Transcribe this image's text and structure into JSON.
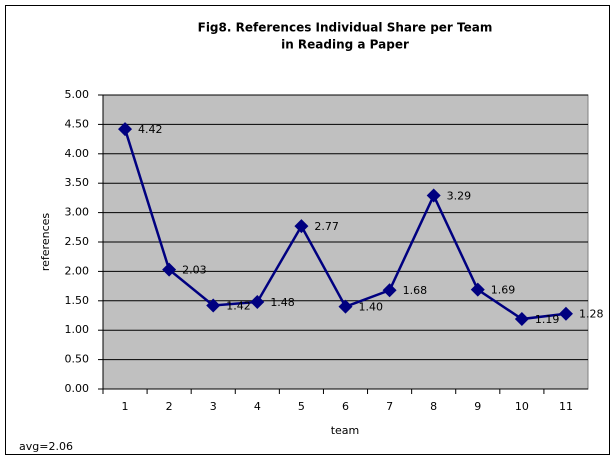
{
  "chart_data": {
    "type": "line",
    "title": [
      "Fig8. References Individual Share per Team",
      "in Reading a Paper"
    ],
    "x_label": "team",
    "y_label": "references",
    "annotation": "avg=2.06",
    "categories": [
      "1",
      "2",
      "3",
      "4",
      "5",
      "6",
      "7",
      "8",
      "9",
      "10",
      "11"
    ],
    "values": [
      4.42,
      2.03,
      1.42,
      1.48,
      2.77,
      1.4,
      1.68,
      3.29,
      1.69,
      1.19,
      1.28
    ],
    "value_labels": [
      "4.42",
      "2.03",
      "1.42",
      "1.48",
      "2.77",
      "1.40",
      "1.68",
      "3.29",
      "1.69",
      "1.19",
      "1.28"
    ],
    "color": "#000080",
    "plot_background": "#c0c0c0",
    "ylim": [
      0,
      5
    ],
    "yticks": [
      {
        "value": 0,
        "label": "0.00"
      },
      {
        "value": 0.5,
        "label": "0.50"
      },
      {
        "value": 1,
        "label": "1.00"
      },
      {
        "value": 1.5,
        "label": "1.50"
      },
      {
        "value": 2,
        "label": "2.00"
      },
      {
        "value": 2.5,
        "label": "2.50"
      },
      {
        "value": 3,
        "label": "3.00"
      },
      {
        "value": 3.5,
        "label": "3.50"
      },
      {
        "value": 4,
        "label": "4.00"
      },
      {
        "value": 4.5,
        "label": "4.50"
      },
      {
        "value": 5,
        "label": "5.00"
      }
    ],
    "grid": true
  }
}
